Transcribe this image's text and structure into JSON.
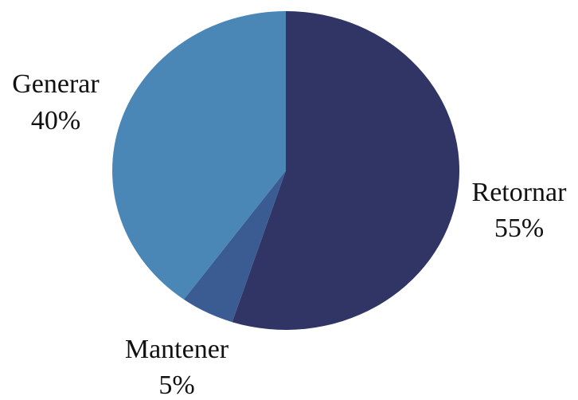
{
  "chart_data": {
    "type": "pie",
    "title": "",
    "start_angle_deg": 0,
    "direction": "clockwise",
    "slices": [
      {
        "label": "Retornar",
        "value": 55,
        "value_label": "55%",
        "color": "#303566"
      },
      {
        "label": "Mantener",
        "value": 5,
        "value_label": "5%",
        "color": "#3b5c93"
      },
      {
        "label": "Generar",
        "value": 40,
        "value_label": "40%",
        "color": "#4a87b6"
      }
    ],
    "legend": "none"
  }
}
